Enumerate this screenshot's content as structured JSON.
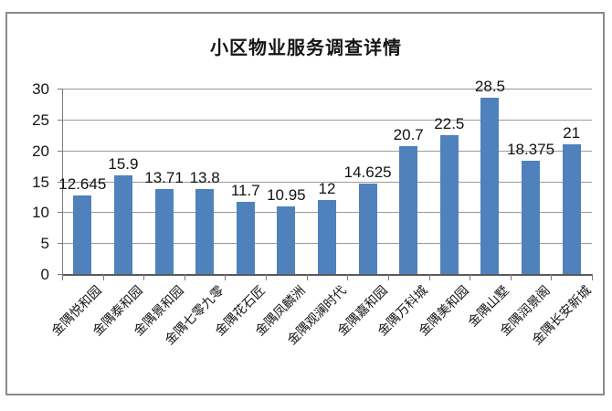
{
  "chart_data": {
    "type": "bar",
    "title": "小区物业服务调查详情",
    "categories": [
      "金隅悦和园",
      "金隅泰和园",
      "金隅景和园",
      "金隅七零九零",
      "金隅花石匠",
      "金隅凤麟洲",
      "金隅观澜时代",
      "金隅嘉和园",
      "金隅万科城",
      "金隅美和园",
      "金隅山墅",
      "金隅润景阁",
      "金隅长安新城"
    ],
    "values": [
      12.645,
      15.9,
      13.71,
      13.8,
      11.7,
      10.95,
      12,
      14.625,
      20.7,
      22.5,
      28.5,
      18.375,
      21
    ],
    "value_labels": [
      "12.645",
      "15.9",
      "13.71",
      "13.8",
      "11.7",
      "10.95",
      "12",
      "14.625",
      "20.7",
      "22.5",
      "28.5",
      "18.375",
      "21"
    ],
    "xlabel": "",
    "ylabel": "",
    "ylim": [
      0,
      30
    ],
    "yticks": [
      0,
      5,
      10,
      15,
      20,
      25,
      30
    ],
    "grid": true,
    "legend": false,
    "colors": {
      "bar": "#4f81bd",
      "grid": "#9a9a9a",
      "axis": "#595959",
      "frame_border": "#8a8a8a",
      "text": "#151515",
      "background": "#ffffff"
    }
  }
}
